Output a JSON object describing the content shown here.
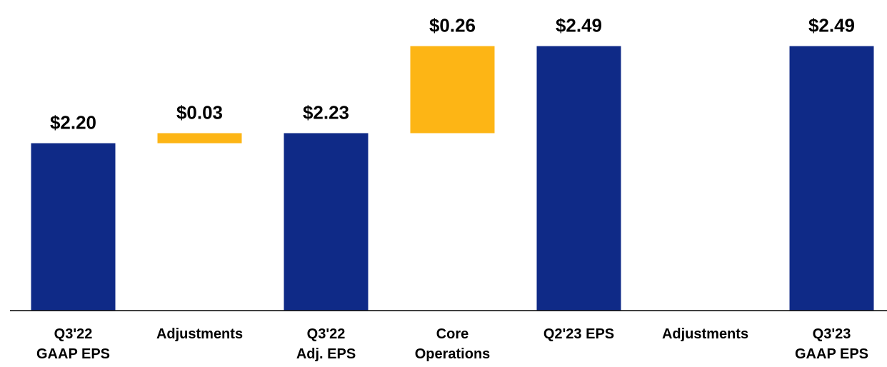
{
  "chart_data": {
    "type": "waterfall",
    "categories": [
      [
        "Q3'22",
        "GAAP EPS"
      ],
      [
        "Adjustments"
      ],
      [
        "Q3'22",
        "Adj. EPS"
      ],
      [
        "Core",
        "Operations"
      ],
      [
        "Q2'23 EPS"
      ],
      [
        "Adjustments"
      ],
      [
        "Q3'23",
        "GAAP EPS"
      ]
    ],
    "values": [
      2.2,
      0.03,
      2.23,
      0.26,
      2.49,
      null,
      2.49
    ],
    "value_labels": [
      "$2.20",
      "$0.03",
      "$2.23",
      "$0.26",
      "$2.49",
      null,
      "$2.49"
    ],
    "measure": [
      "total",
      "relative",
      "total",
      "relative",
      "total",
      "relative",
      "total"
    ],
    "colors": {
      "total": "#0f2a87",
      "relative": "#fdb515"
    },
    "ylim": [
      1.7,
      2.6
    ]
  }
}
